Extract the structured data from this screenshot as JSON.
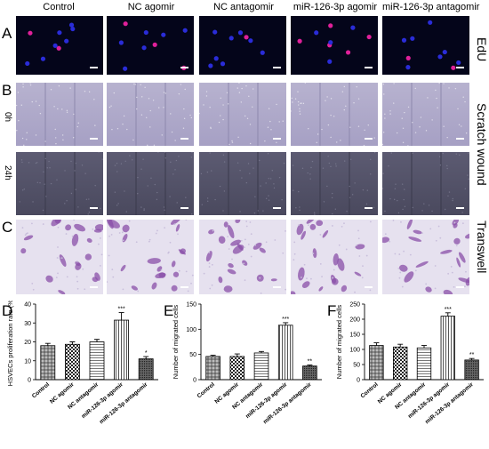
{
  "columns": [
    "Control",
    "NC agomir",
    "NC antagomir",
    "miR-126-3p agomir",
    "miR-126-3p antagomir"
  ],
  "panels": {
    "A": {
      "letter": "A",
      "side_label": "EdU"
    },
    "B": {
      "letter": "B",
      "side_label": "Scratch wound",
      "rows": [
        "0h",
        "24h"
      ]
    },
    "C": {
      "letter": "C",
      "side_label": "Transwell"
    },
    "D": {
      "letter": "D"
    },
    "E": {
      "letter": "E"
    },
    "F": {
      "letter": "F"
    }
  },
  "colors": {
    "edu_bg": "#04051a",
    "nucleus_blue": "#2a2cd8",
    "nucleus_pink": "#e0209a",
    "scratch_0h": "#aea9c9",
    "scratch_24h": "#545368",
    "transwell_bg": "#e6e1ef",
    "cell_purple": "#8a4fa8"
  },
  "chart_data": [
    {
      "type": "bar",
      "panel": "D",
      "categories": [
        "Control",
        "NC agomir",
        "NC antagomir",
        "miR-126-3p agomir",
        "miR-126-3p antagomir"
      ],
      "values": [
        18,
        18.7,
        20,
        31.5,
        11
      ],
      "errors": [
        1.2,
        1.3,
        1.3,
        4.0,
        1.2
      ],
      "annotations": [
        "",
        "",
        "",
        "***",
        "*"
      ],
      "ylabel": "HSVECs proliferation rate (%)",
      "ylim": [
        0,
        40
      ],
      "yticks": [
        0,
        10,
        20,
        30,
        40
      ],
      "patterns": [
        "cross",
        "checker",
        "hlines",
        "vlines",
        "dense"
      ]
    },
    {
      "type": "bar",
      "panel": "E",
      "categories": [
        "Control",
        "NC agomir",
        "NC antagomir",
        "miR-126-3p agomir",
        "miR-126-3p antagomir"
      ],
      "values": [
        46,
        46,
        53,
        108,
        27
      ],
      "errors": [
        2.5,
        5,
        3,
        5,
        2
      ],
      "annotations": [
        "",
        "",
        "",
        "***",
        "**"
      ],
      "ylabel": "Number of migrated cells",
      "ylim": [
        0,
        150
      ],
      "yticks": [
        0,
        50,
        100,
        150
      ],
      "patterns": [
        "cross",
        "checker",
        "hlines",
        "vlines",
        "dense"
      ]
    },
    {
      "type": "bar",
      "panel": "F",
      "categories": [
        "Control",
        "NC agomir",
        "NC antagomir",
        "miR-126-3p agomir",
        "miR-126-3p antagomir"
      ],
      "values": [
        113,
        108,
        105,
        210,
        65
      ],
      "errors": [
        9,
        9,
        8,
        11,
        5
      ],
      "annotations": [
        "",
        "",
        "",
        "***",
        "**"
      ],
      "ylabel": "Number of migrated cells",
      "ylim": [
        0,
        250
      ],
      "yticks": [
        0,
        50,
        100,
        150,
        200,
        250
      ],
      "patterns": [
        "cross",
        "checker",
        "hlines",
        "vlines",
        "dense"
      ]
    }
  ]
}
